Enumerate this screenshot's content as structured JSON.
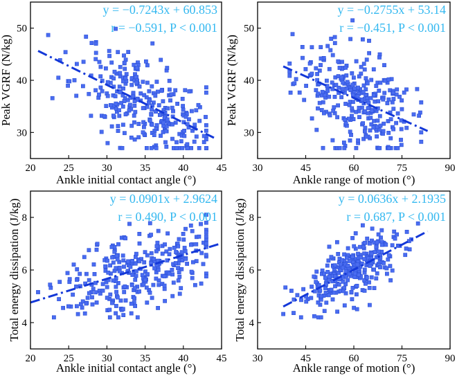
{
  "chart_data": [
    {
      "type": "scatter",
      "xlabel": "Ankle initial contact angle (°)",
      "ylabel": "Peak VGRF (N/kg)",
      "xlim": [
        20,
        45
      ],
      "ylim": [
        25,
        55
      ],
      "xticks": [
        20,
        25,
        30,
        35,
        40,
        45
      ],
      "yticks": [
        30,
        40,
        50
      ],
      "equation": "y = −0.7243x + 60.853",
      "stats": "r = −0.591, P < 0.001",
      "fit": {
        "slope": -0.7243,
        "intercept": 60.853,
        "x_range": [
          21,
          44
        ]
      },
      "points": {
        "count": 300,
        "x_mean": 35,
        "x_sd": 4.5,
        "y_sd": 4.5,
        "x_min": 21,
        "x_max": 43,
        "y_min": 27,
        "y_max": 52,
        "seed": 11
      }
    },
    {
      "type": "scatter",
      "xlabel": "Ankle range of motion (°)",
      "ylabel": "Peak VGRF (N/kg)",
      "xlim": [
        30,
        90
      ],
      "ylim": [
        25,
        55
      ],
      "xticks": [
        30,
        45,
        60,
        75,
        90
      ],
      "yticks": [
        30,
        40,
        50
      ],
      "equation": "y = −0.2755x + 53.14",
      "stats": "r = −0.451, P < 0.001",
      "fit": {
        "slope": -0.2755,
        "intercept": 53.14,
        "x_range": [
          38,
          83
        ]
      },
      "points": {
        "count": 300,
        "x_mean": 60,
        "x_sd": 9,
        "y_sd": 4.8,
        "x_min": 40,
        "x_max": 81,
        "y_min": 27,
        "y_max": 52,
        "seed": 23
      }
    },
    {
      "type": "scatter",
      "xlabel": "Ankle initial contact angle  (°)",
      "ylabel": "Total energy dissipation (J/kg)",
      "xlim": [
        20,
        45
      ],
      "ylim": [
        3,
        9
      ],
      "xticks": [
        20,
        25,
        30,
        35,
        40,
        45
      ],
      "yticks": [
        4,
        6,
        8
      ],
      "equation": "y = 0.0901x + 2.9624",
      "stats": "r = 0.490, P < 0.001",
      "fit": {
        "slope": 0.0901,
        "intercept": 2.9624,
        "x_range": [
          20,
          45
        ]
      },
      "points": {
        "count": 300,
        "x_mean": 34,
        "x_sd": 4.8,
        "y_sd": 0.75,
        "x_min": 21,
        "x_max": 43,
        "y_min": 4.2,
        "y_max": 8.1,
        "seed": 37
      }
    },
    {
      "type": "scatter",
      "xlabel": "Ankle range of motion (°)",
      "ylabel": "Total energy dissipation (J/kg)",
      "xlim": [
        30,
        90
      ],
      "ylim": [
        3,
        9
      ],
      "xticks": [
        30,
        45,
        60,
        75,
        90
      ],
      "yticks": [
        4,
        6,
        8
      ],
      "equation": "y = 0.0636x + 2.1935",
      "stats": "r = 0.687, P < 0.001",
      "fit": {
        "slope": 0.0636,
        "intercept": 2.1935,
        "x_range": [
          38,
          83
        ]
      },
      "points": {
        "count": 300,
        "x_mean": 60,
        "x_sd": 8.5,
        "y_sd": 0.55,
        "x_min": 38,
        "x_max": 80,
        "y_min": 4.2,
        "y_max": 8.1,
        "seed": 53
      }
    }
  ],
  "colors": {
    "points": "#4a6cf0",
    "fit_line": "#1438d8",
    "equation": "#33b8f0"
  }
}
